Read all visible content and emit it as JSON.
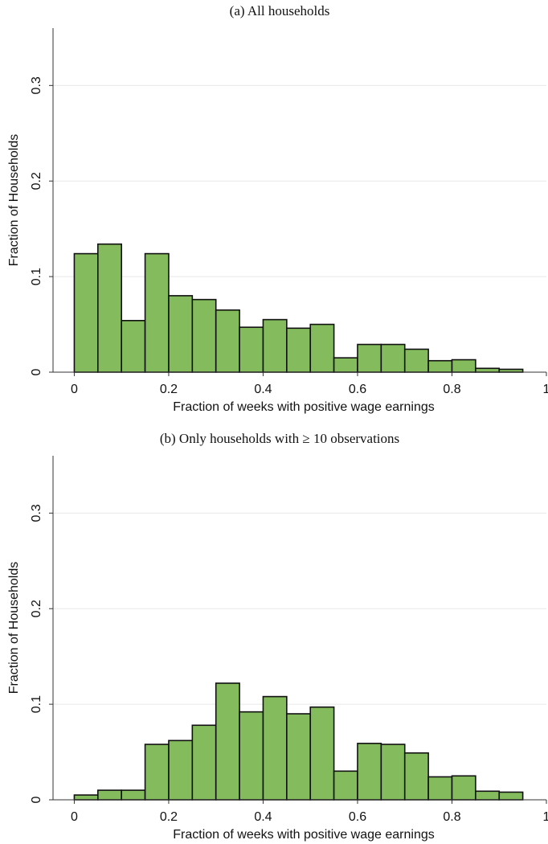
{
  "chart_data": [
    {
      "type": "histogram",
      "title": "(a) All households",
      "x_label": "Fraction of weeks with positive wage earnings",
      "y_label": "Fraction of Households",
      "bins": [
        0,
        0.05,
        0.1,
        0.15,
        0.2,
        0.25,
        0.3,
        0.35,
        0.4,
        0.45,
        0.5,
        0.55,
        0.6,
        0.65,
        0.7,
        0.75,
        0.8,
        0.85,
        0.9,
        0.95
      ],
      "values": [
        0.124,
        0.134,
        0.054,
        0.124,
        0.08,
        0.076,
        0.065,
        0.047,
        0.055,
        0.046,
        0.05,
        0.015,
        0.029,
        0.029,
        0.024,
        0.012,
        0.013,
        0.004,
        0.003
      ],
      "color": "#84bb5c",
      "edge_color": "#111111",
      "xlim": [
        -0.045,
        1
      ],
      "xticks": [
        0,
        0.2,
        0.4,
        0.6,
        0.8,
        1
      ],
      "ylim": [
        0,
        0.36
      ],
      "yticks": [
        0,
        0.1,
        0.2,
        0.3
      ],
      "grid": true
    },
    {
      "type": "histogram",
      "title": "(b) Only households with ≥ 10 observations",
      "x_label": "Fraction of weeks with positive wage earnings",
      "y_label": "Fraction of Households",
      "bins": [
        0,
        0.05,
        0.1,
        0.15,
        0.2,
        0.25,
        0.3,
        0.35,
        0.4,
        0.45,
        0.5,
        0.55,
        0.6,
        0.65,
        0.7,
        0.75,
        0.8,
        0.85,
        0.9,
        0.95
      ],
      "values": [
        0.005,
        0.01,
        0.01,
        0.058,
        0.062,
        0.078,
        0.122,
        0.092,
        0.108,
        0.09,
        0.097,
        0.03,
        0.059,
        0.058,
        0.049,
        0.024,
        0.025,
        0.009,
        0.008
      ],
      "color": "#84bb5c",
      "edge_color": "#111111",
      "xlim": [
        -0.045,
        1
      ],
      "xticks": [
        0,
        0.2,
        0.4,
        0.6,
        0.8,
        1
      ],
      "ylim": [
        0,
        0.36
      ],
      "yticks": [
        0,
        0.1,
        0.2,
        0.3
      ],
      "grid": true
    }
  ]
}
